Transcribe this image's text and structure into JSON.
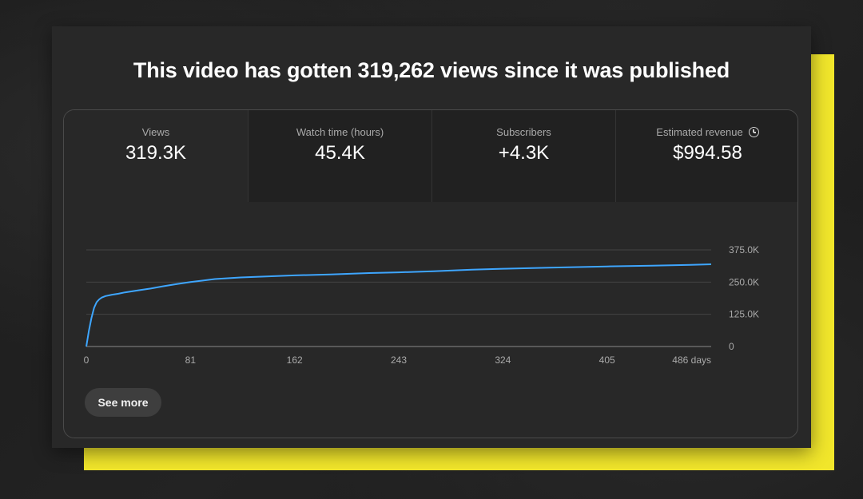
{
  "headline": "This video has gotten 319,262 views since it was published",
  "metrics": [
    {
      "label": "Views",
      "value": "319.3K"
    },
    {
      "label": "Watch time (hours)",
      "value": "45.4K"
    },
    {
      "label": "Subscribers",
      "value": "+4.3K"
    },
    {
      "label": "Estimated revenue",
      "value": "$994.58",
      "icon": "clock-icon"
    }
  ],
  "see_more_label": "See more",
  "colors": {
    "line": "#3ea6ff",
    "accent_card": "#f1e62b"
  },
  "chart_data": {
    "type": "line",
    "x_ticks": [
      0,
      81,
      162,
      243,
      324,
      405,
      486
    ],
    "x_tick_labels": [
      "0",
      "81",
      "162",
      "243",
      "324",
      "405",
      "486 days"
    ],
    "y_ticks": [
      0,
      125000,
      250000,
      375000
    ],
    "y_tick_labels": [
      "0",
      "125.0K",
      "250.0K",
      "375.0K"
    ],
    "xlim": [
      0,
      486
    ],
    "ylim": [
      0,
      375000
    ],
    "grid": true,
    "series": [
      {
        "x": [
          0,
          2,
          4,
          6,
          8,
          10,
          12,
          15,
          20,
          25,
          30,
          40,
          50,
          60,
          70,
          81,
          100,
          120,
          140,
          162,
          190,
          220,
          243,
          270,
          300,
          324,
          360,
          405,
          440,
          470,
          486
        ],
        "y": [
          0,
          60000,
          110000,
          150000,
          172000,
          183000,
          190000,
          196000,
          201000,
          205000,
          210000,
          218000,
          225000,
          234000,
          242000,
          250000,
          262000,
          268000,
          272000,
          276000,
          280000,
          285000,
          288000,
          292000,
          298000,
          302000,
          306000,
          311000,
          314000,
          317000,
          319262
        ]
      }
    ]
  }
}
